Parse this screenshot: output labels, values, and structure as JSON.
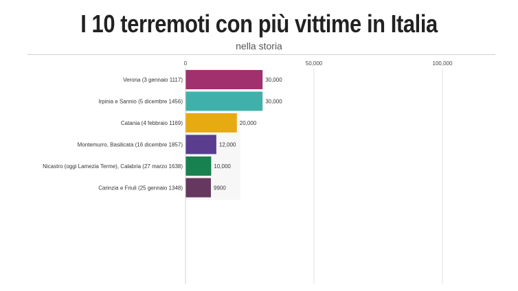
{
  "title": "I 10 terremoti con più vittime in Italia",
  "subtitle": "nella storia",
  "chart_data": {
    "type": "bar",
    "orientation": "horizontal",
    "categories": [
      "Verona (3 gennaio 1117)",
      "Irpinia e Sannio (5 dicembre 1456)",
      "Catania (4 febbraio 1169)",
      "Montemurro, Basilicata (16 dicembre 1857)",
      "Nicastro (oggi Lamezia Terme), Calabria (27 marzo 1638)",
      "Carinzia e Friuli (25 gennaio 1348)"
    ],
    "values": [
      30000,
      30000,
      20000,
      12000,
      10000,
      9900
    ],
    "value_labels": [
      "30,000",
      "30,000",
      "20,000",
      "12,000",
      "10,000",
      "9900"
    ],
    "colors": [
      "#a0306e",
      "#3fb1aa",
      "#e7ab12",
      "#5a3d8f",
      "#17824f",
      "#66385f"
    ],
    "x_ticks": [
      0,
      50000,
      100000
    ],
    "x_tick_labels": [
      "0",
      "50,000",
      "100,000"
    ],
    "xlim": [
      0,
      120000
    ],
    "grid": true
  }
}
